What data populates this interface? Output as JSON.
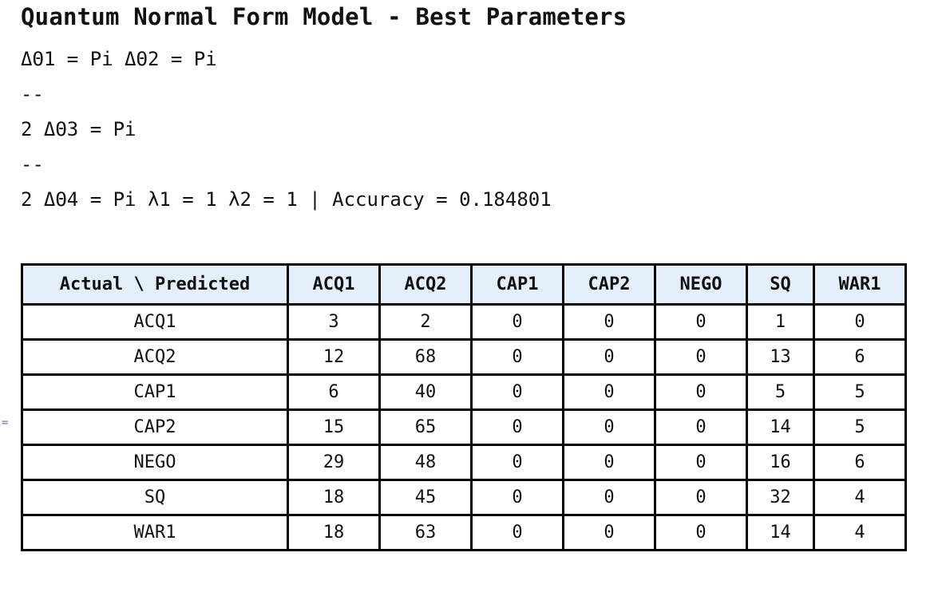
{
  "title": "Quantum Normal Form Model - Best Parameters",
  "params": {
    "line1": "ΔΘ1 = Pi ΔΘ2 = Pi",
    "line2": "--",
    "line3": "2 ΔΘ3 = Pi",
    "line4": "--",
    "line5": "2 ΔΘ4 = Pi λ1 = 1 λ2 = 1 | Accuracy = 0.184801"
  },
  "cell_bracket": "=",
  "table": {
    "headers": [
      "Actual \\ Predicted",
      "ACQ1",
      "ACQ2",
      "CAP1",
      "CAP2",
      "NEGO",
      "SQ",
      "WAR1"
    ],
    "rows": [
      [
        "ACQ1",
        "3",
        "2",
        "0",
        "0",
        "0",
        "1",
        "0"
      ],
      [
        "ACQ2",
        "12",
        "68",
        "0",
        "0",
        "0",
        "13",
        "6"
      ],
      [
        "CAP1",
        "6",
        "40",
        "0",
        "0",
        "0",
        "5",
        "5"
      ],
      [
        "CAP2",
        "15",
        "65",
        "0",
        "0",
        "0",
        "14",
        "5"
      ],
      [
        "NEGO",
        "29",
        "48",
        "0",
        "0",
        "0",
        "16",
        "6"
      ],
      [
        "SQ",
        "18",
        "45",
        "0",
        "0",
        "0",
        "32",
        "4"
      ],
      [
        "WAR1",
        "18",
        "63",
        "0",
        "0",
        "0",
        "14",
        "4"
      ]
    ]
  }
}
